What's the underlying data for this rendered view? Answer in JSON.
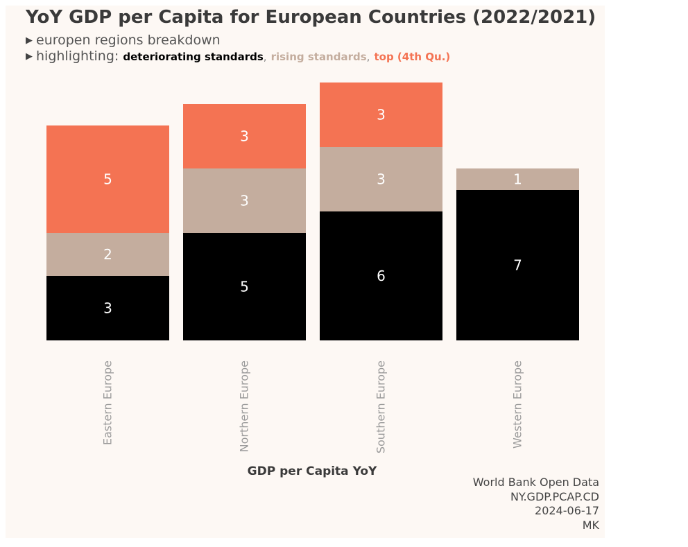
{
  "chart_data": {
    "type": "bar",
    "stacked": true,
    "title": "YoY GDP per Capita for European Countries (2022/2021)",
    "subtitle": "europen regions breakdown",
    "highlighting_prefix": "highlighting:",
    "xlabel": "GDP per Capita YoY",
    "ylabel": "",
    "ylim": [
      0,
      12
    ],
    "grid": false,
    "categories": [
      "Eastern Europe",
      "Northern Europe",
      "Southern Europe",
      "Western Europe"
    ],
    "series": [
      {
        "name": "deteriorating standards",
        "color": "#000000",
        "label_color": "#ffffff",
        "values": [
          3,
          5,
          6,
          7
        ]
      },
      {
        "name": "rising standards",
        "color": "#c4ad9e",
        "label_color": "#ffffff",
        "values": [
          2,
          3,
          3,
          1
        ]
      },
      {
        "name": "top (4th Qu.)",
        "color": "#f47353",
        "label_color": "#ffffff",
        "values": [
          5,
          3,
          3,
          0
        ]
      }
    ]
  },
  "colors": {
    "background": "#fdf8f4",
    "tick_label": "#9a9a9a",
    "title": "#3a3a3a"
  },
  "footer": {
    "source": "World Bank Open Data",
    "indicator": "NY.GDP.PCAP.CD",
    "date": "2024-06-17",
    "author": "MK"
  }
}
